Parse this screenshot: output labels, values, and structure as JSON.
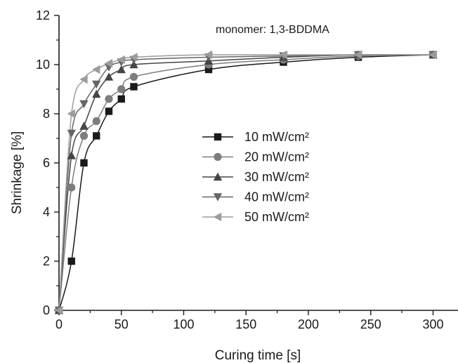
{
  "chart_data": {
    "type": "line",
    "title": "",
    "xlabel": "Curing time [s]",
    "ylabel": "Shrinkage [%]",
    "xlim": [
      0,
      320
    ],
    "ylim": [
      0,
      12
    ],
    "xticks": [
      0,
      50,
      100,
      150,
      200,
      250,
      300
    ],
    "yticks": [
      0,
      2,
      4,
      6,
      8,
      10,
      12
    ],
    "annotation": "monomer: 1,3-BDDMA",
    "legend_position": "center",
    "grid": false,
    "series": [
      {
        "name": "10 mW/cm²",
        "marker": "square",
        "color": "#1a1a1a",
        "x": [
          0,
          10,
          20,
          30,
          40,
          50,
          60,
          120,
          180,
          240,
          300
        ],
        "y": [
          0,
          2.0,
          6.0,
          7.1,
          8.1,
          8.6,
          9.1,
          9.8,
          10.1,
          10.3,
          10.4
        ]
      },
      {
        "name": "20 mW/cm²",
        "marker": "circle",
        "color": "#7d7d7d",
        "x": [
          0,
          10,
          20,
          30,
          40,
          50,
          60,
          120,
          180,
          240,
          300
        ],
        "y": [
          0,
          5.0,
          7.1,
          7.7,
          8.6,
          9.0,
          9.5,
          10.0,
          10.2,
          10.35,
          10.4
        ]
      },
      {
        "name": "30 mW/cm²",
        "marker": "triangle-up",
        "color": "#454545",
        "x": [
          0,
          10,
          20,
          30,
          40,
          50,
          60,
          120,
          180,
          240,
          300
        ],
        "y": [
          0,
          6.3,
          7.5,
          8.8,
          9.5,
          9.8,
          10.0,
          10.15,
          10.3,
          10.4,
          10.4
        ]
      },
      {
        "name": "40 mW/cm²",
        "marker": "triangle-down",
        "color": "#666666",
        "x": [
          0,
          10,
          20,
          30,
          40,
          50,
          60,
          120,
          180,
          240,
          300
        ],
        "y": [
          0,
          7.2,
          8.4,
          9.2,
          9.9,
          10.1,
          10.2,
          10.3,
          10.35,
          10.4,
          10.4
        ]
      },
      {
        "name": "50 mW/cm²",
        "marker": "triangle-left",
        "color": "#9c9c9c",
        "x": [
          0,
          10,
          20,
          30,
          40,
          50,
          60,
          120,
          180,
          240,
          300
        ],
        "y": [
          0,
          8.0,
          9.4,
          9.8,
          10.05,
          10.2,
          10.3,
          10.4,
          10.4,
          10.4,
          10.4
        ]
      }
    ]
  }
}
